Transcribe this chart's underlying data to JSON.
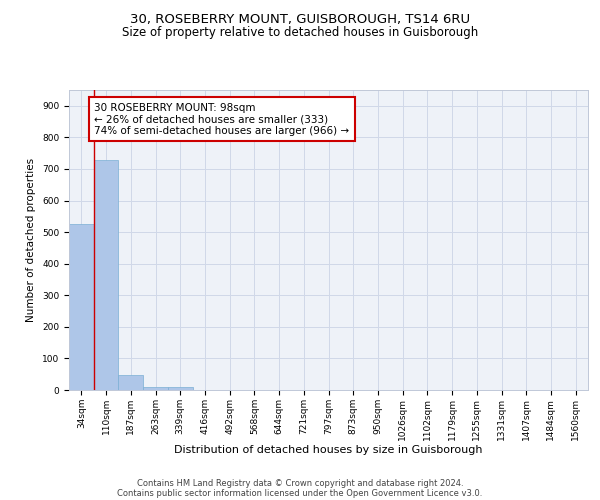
{
  "title1": "30, ROSEBERRY MOUNT, GUISBOROUGH, TS14 6RU",
  "title2": "Size of property relative to detached houses in Guisborough",
  "xlabel": "Distribution of detached houses by size in Guisborough",
  "ylabel": "Number of detached properties",
  "bin_labels": [
    "34sqm",
    "110sqm",
    "187sqm",
    "263sqm",
    "339sqm",
    "416sqm",
    "492sqm",
    "568sqm",
    "644sqm",
    "721sqm",
    "797sqm",
    "873sqm",
    "950sqm",
    "1026sqm",
    "1102sqm",
    "1179sqm",
    "1255sqm",
    "1331sqm",
    "1407sqm",
    "1484sqm",
    "1560sqm"
  ],
  "bar_values": [
    527,
    727,
    47,
    11,
    9,
    0,
    0,
    0,
    0,
    0,
    0,
    0,
    0,
    0,
    0,
    0,
    0,
    0,
    0,
    0,
    0
  ],
  "bar_color": "#aec6e8",
  "bar_edge_color": "#7bafd4",
  "grid_color": "#d0d8e8",
  "bg_color": "#eef2f8",
  "annotation_line1": "30 ROSEBERRY MOUNT: 98sqm",
  "annotation_line2": "← 26% of detached houses are smaller (333)",
  "annotation_line3": "74% of semi-detached houses are larger (966) →",
  "annotation_box_color": "#ffffff",
  "annotation_box_edge_color": "#cc0000",
  "ylim": [
    0,
    950
  ],
  "yticks": [
    0,
    100,
    200,
    300,
    400,
    500,
    600,
    700,
    800,
    900
  ],
  "footer_line1": "Contains HM Land Registry data © Crown copyright and database right 2024.",
  "footer_line2": "Contains public sector information licensed under the Open Government Licence v3.0.",
  "title1_fontsize": 9.5,
  "title2_fontsize": 8.5,
  "xlabel_fontsize": 8,
  "ylabel_fontsize": 7.5,
  "tick_fontsize": 6.5,
  "annotation_fontsize": 7.5,
  "footer_fontsize": 6.0
}
